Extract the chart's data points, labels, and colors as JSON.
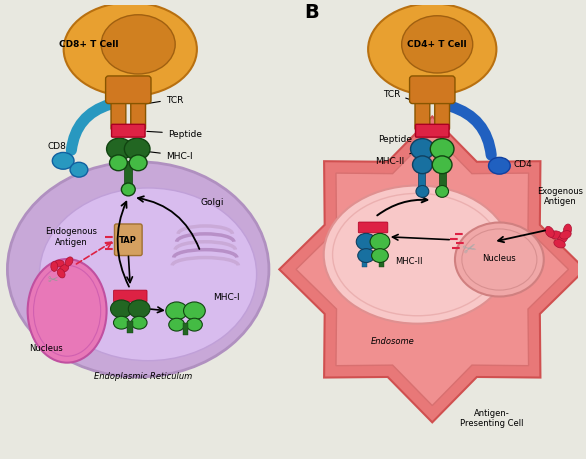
{
  "bg_color": "#e8e8e0",
  "panel_A": {
    "cell_color": "#c8a8d8",
    "cell_outline": "#b090c0",
    "nucleus_color": "#e878b8",
    "tcell_body_color": "#e8a030",
    "tcell_nucleus_color": "#d08020",
    "tcr_color": "#d07820",
    "cd8_color": "#2898c0",
    "mhc1_dark": "#226622",
    "mhc1_light": "#44bb44",
    "peptide_color": "#dd2244",
    "tap_color": "#d4a060",
    "labels": {
      "cell_name": "CD8+ T Cell",
      "tcr": "TCR",
      "cd8": "CD8",
      "peptide": "Peptide",
      "mhc1_top": "MHC-I",
      "mhc1_bottom": "MHC-I",
      "endogenous": "Endogenous\nAntigen",
      "tap": "TAP",
      "golgi": "Golgi",
      "nucleus": "Nucleus",
      "er": "Endoplasmic Reticulum"
    }
  },
  "panel_B": {
    "apc_color_outer": "#e87878",
    "apc_color_inner": "#f09090",
    "apc_color_endo": "#f8c8c8",
    "nucleus_color": "#f0a8a8",
    "tcell_body_color": "#e8a030",
    "tcell_nucleus_color": "#d08020",
    "tcr_color": "#d07820",
    "cd4_color": "#2060c0",
    "mhc2_teal": "#1870a0",
    "mhc2_green": "#44bb44",
    "mhc2_dark": "#226622",
    "peptide_color": "#dd2244",
    "labels": {
      "cell_name": "CD4+ T Cell",
      "tcr": "TCR",
      "peptide": "Peptide",
      "cd4": "CD4",
      "mhc2_top": "MHC-II",
      "mhc2_bottom": "MHC-II",
      "exogenous": "Exogenous\nAntigen",
      "endosome": "Endosome",
      "nucleus": "Nucleus",
      "apc": "Antigen-\nPresenting Cell"
    }
  },
  "panel_B_label": "B"
}
